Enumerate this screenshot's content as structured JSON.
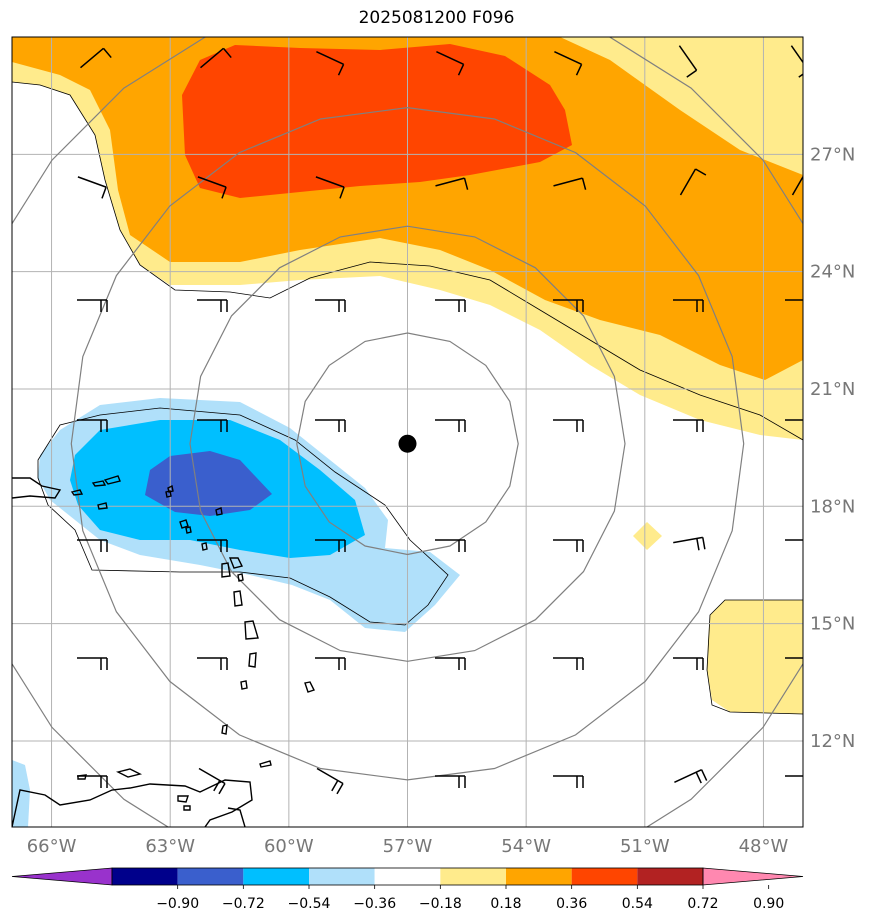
{
  "title": "2025081200 F096",
  "center_marker": {
    "lon": -57,
    "lat": 19.6
  },
  "map": {
    "lon_range": [
      -67,
      -47
    ],
    "lat_range": [
      9.8,
      30
    ],
    "lon_ticks": [
      -66,
      -63,
      -60,
      -57,
      -54,
      -51,
      -48
    ],
    "lat_ticks": [
      12,
      15,
      18,
      21,
      24,
      27
    ],
    "lon_tick_labels": [
      "66°W",
      "63°W",
      "60°W",
      "57°W",
      "54°W",
      "51°W",
      "48°W"
    ],
    "lat_tick_labels": [
      "12°N",
      "15°N",
      "18°N",
      "21°N",
      "24°N",
      "27°N"
    ],
    "range_ring_radii_deg": [
      2.8,
      5.5,
      8.5,
      11.5
    ],
    "grid": true
  },
  "colorbar": {
    "tick_labels": [
      "−0.90",
      "−0.72",
      "−0.54",
      "−0.36",
      "−0.18",
      "0.18",
      "0.36",
      "0.54",
      "0.72",
      "0.90"
    ],
    "colors": [
      "#9932cc",
      "#00008b",
      "#3a5fcd",
      "#00bfff",
      "#b0e0fa",
      "#ffffff",
      "#ffeb8c",
      "#ffa500",
      "#ff4500",
      "#b22222",
      "#ff88b0"
    ]
  },
  "colors": {
    "coast": "#000000",
    "ring": "#808080",
    "grid": "#b3b3b3",
    "barb": "#000000",
    "tick_label": "#777777"
  }
}
